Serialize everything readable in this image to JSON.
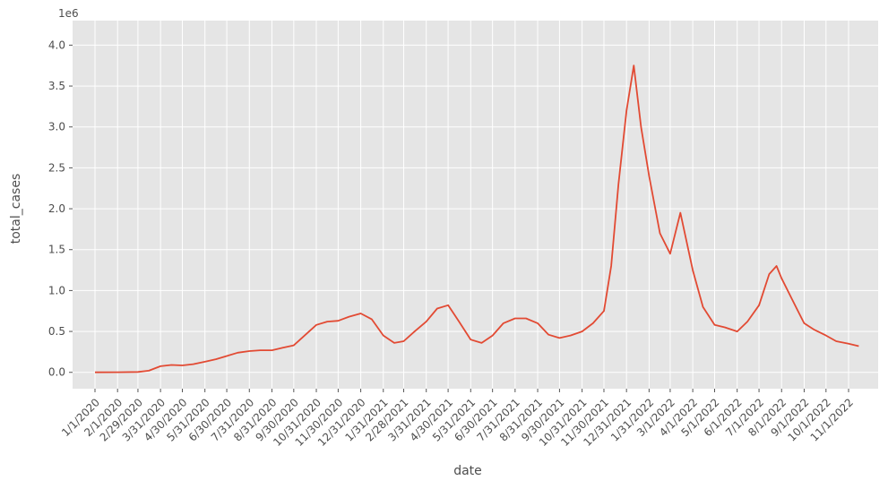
{
  "chart_data": {
    "type": "line",
    "title": "",
    "xlabel": "date",
    "ylabel": "total_cases",
    "y_offset_label": "1e6",
    "ylim": [
      -0.2,
      4.3
    ],
    "y_ticks": [
      0.0,
      0.5,
      1.0,
      1.5,
      2.0,
      2.5,
      3.0,
      3.5,
      4.0
    ],
    "y_tick_labels": [
      "0.0",
      "0.5",
      "1.0",
      "1.5",
      "2.0",
      "2.5",
      "3.0",
      "3.5",
      "4.0"
    ],
    "x_tick_labels": [
      "1/1/2020",
      "2/1/2020",
      "2/29/2020",
      "3/31/2020",
      "4/30/2020",
      "5/31/2020",
      "6/30/2020",
      "7/31/2020",
      "8/31/2020",
      "9/30/2020",
      "10/31/2020",
      "11/30/2020",
      "12/31/2020",
      "1/31/2021",
      "2/28/2021",
      "3/31/2021",
      "4/30/2021",
      "5/31/2021",
      "6/30/2021",
      "7/31/2021",
      "8/31/2021",
      "9/30/2021",
      "10/31/2021",
      "11/30/2021",
      "12/31/2021",
      "1/31/2022",
      "3/1/2022",
      "4/1/2022",
      "5/1/2022",
      "6/1/2022",
      "7/1/2022",
      "8/1/2022",
      "9/1/2022",
      "10/1/2022",
      "11/1/2022"
    ],
    "grid": true,
    "legend": "none",
    "style": "ggplot",
    "series": [
      {
        "color": "#E24A33",
        "points": [
          [
            "1/1/2020",
            0.0
          ],
          [
            "2/1/2020",
            0.002
          ],
          [
            "2/29/2020",
            0.005
          ],
          [
            "3/15/2020",
            0.02
          ],
          [
            "3/31/2020",
            0.075
          ],
          [
            "4/15/2020",
            0.09
          ],
          [
            "4/30/2020",
            0.085
          ],
          [
            "5/15/2020",
            0.1
          ],
          [
            "5/31/2020",
            0.13
          ],
          [
            "6/15/2020",
            0.16
          ],
          [
            "6/30/2020",
            0.2
          ],
          [
            "7/15/2020",
            0.24
          ],
          [
            "7/31/2020",
            0.26
          ],
          [
            "8/15/2020",
            0.27
          ],
          [
            "8/31/2020",
            0.27
          ],
          [
            "9/15/2020",
            0.3
          ],
          [
            "9/30/2020",
            0.33
          ],
          [
            "10/15/2020",
            0.45
          ],
          [
            "10/31/2020",
            0.58
          ],
          [
            "11/15/2020",
            0.62
          ],
          [
            "11/30/2020",
            0.63
          ],
          [
            "12/15/2020",
            0.68
          ],
          [
            "12/31/2020",
            0.72
          ],
          [
            "1/15/2021",
            0.65
          ],
          [
            "1/31/2021",
            0.45
          ],
          [
            "2/15/2021",
            0.36
          ],
          [
            "2/28/2021",
            0.38
          ],
          [
            "3/15/2021",
            0.5
          ],
          [
            "3/31/2021",
            0.62
          ],
          [
            "4/15/2021",
            0.78
          ],
          [
            "4/30/2021",
            0.82
          ],
          [
            "5/15/2021",
            0.62
          ],
          [
            "5/31/2021",
            0.4
          ],
          [
            "6/15/2021",
            0.36
          ],
          [
            "6/30/2021",
            0.45
          ],
          [
            "7/15/2021",
            0.6
          ],
          [
            "7/31/2021",
            0.66
          ],
          [
            "8/15/2021",
            0.66
          ],
          [
            "8/31/2021",
            0.6
          ],
          [
            "9/15/2021",
            0.46
          ],
          [
            "9/30/2021",
            0.42
          ],
          [
            "10/15/2021",
            0.45
          ],
          [
            "10/31/2021",
            0.5
          ],
          [
            "11/15/2021",
            0.6
          ],
          [
            "11/30/2021",
            0.75
          ],
          [
            "12/10/2021",
            1.3
          ],
          [
            "12/20/2021",
            2.3
          ],
          [
            "12/31/2021",
            3.2
          ],
          [
            "1/10/2022",
            3.75
          ],
          [
            "1/20/2022",
            3.0
          ],
          [
            "1/31/2022",
            2.4
          ],
          [
            "2/15/2022",
            1.7
          ],
          [
            "3/1/2022",
            1.45
          ],
          [
            "3/15/2022",
            1.95
          ],
          [
            "4/1/2022",
            1.25
          ],
          [
            "4/15/2022",
            0.8
          ],
          [
            "5/1/2022",
            0.58
          ],
          [
            "5/15/2022",
            0.55
          ],
          [
            "6/1/2022",
            0.5
          ],
          [
            "6/15/2022",
            0.62
          ],
          [
            "7/1/2022",
            0.82
          ],
          [
            "7/15/2022",
            1.2
          ],
          [
            "7/25/2022",
            1.3
          ],
          [
            "8/1/2022",
            1.15
          ],
          [
            "8/15/2022",
            0.9
          ],
          [
            "9/1/2022",
            0.6
          ],
          [
            "9/15/2022",
            0.52
          ],
          [
            "10/1/2022",
            0.45
          ],
          [
            "10/15/2022",
            0.38
          ],
          [
            "11/1/2022",
            0.35
          ],
          [
            "11/15/2022",
            0.32
          ]
        ]
      }
    ]
  }
}
